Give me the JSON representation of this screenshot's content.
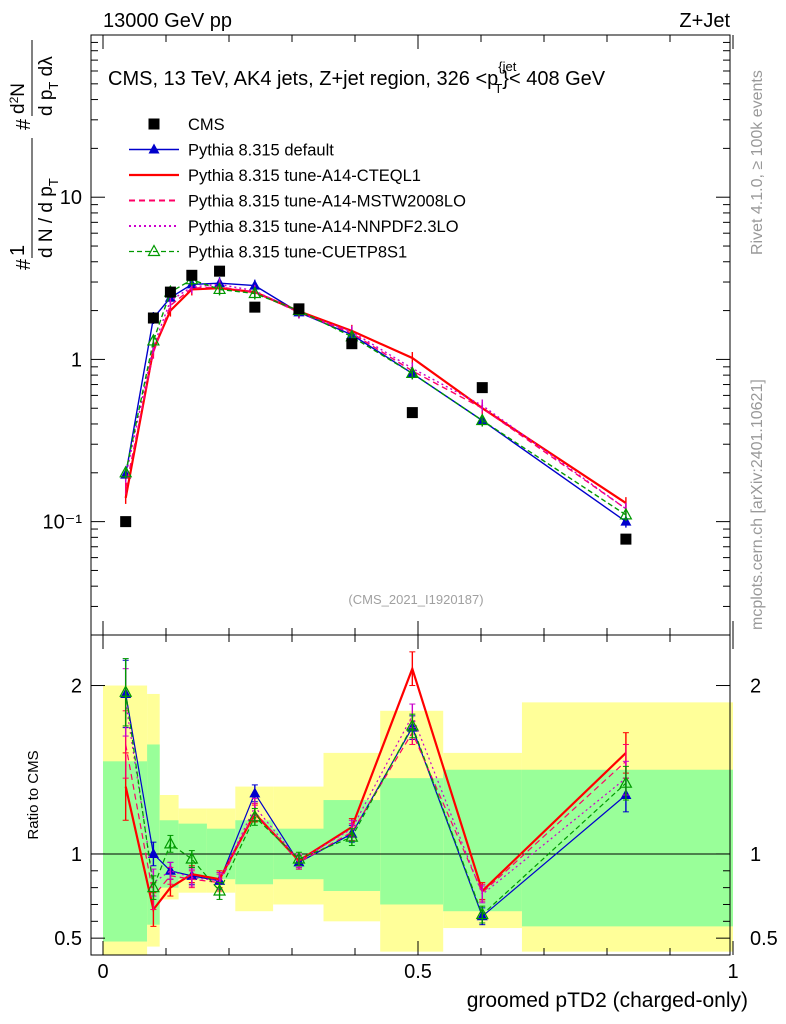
{
  "header": {
    "left": "13000 GeV pp",
    "right": "Z+Jet"
  },
  "plot_title": {
    "main": "CMS, 13 TeV, AK4 jets, Z+jet region, 326 <p",
    "sup": "{jet",
    "sub": "T",
    "end": "}< 408 GeV"
  },
  "ylabel_top": {
    "n1": "#",
    "n2": "1",
    "d1": "d N / d p",
    "d1sub": "T",
    "n3": "#",
    "n4": "d",
    "n4sup": "2",
    "n4b": "N",
    "d2": "d p",
    "d2sub": "T",
    "d2b": " dλ"
  },
  "side_texts": {
    "rivet": "Rivet 4.1.0, ≥ 100k events",
    "mcplots": "mcplots.cern.ch [arXiv:2401.10621]"
  },
  "analysis_tag": "(CMS_2021_I1920187)",
  "ratio_ylabel": "Ratio to CMS",
  "xlabel": "groomed pTD2 (charged-only)",
  "legend": [
    {
      "label": "CMS"
    },
    {
      "label": "Pythia 8.315 default"
    },
    {
      "label": "Pythia 8.315 tune-A14-CTEQL1"
    },
    {
      "label": "Pythia 8.315 tune-A14-MSTW2008LO"
    },
    {
      "label": "Pythia 8.315 tune-A14-NNPDF2.3LO"
    },
    {
      "label": "Pythia 8.315 tune-CUETP8S1"
    }
  ],
  "chart_data": {
    "type": "line",
    "title": "CMS, 13 TeV, AK4 jets, Z+jet region, 326 < pT jet < 408 GeV",
    "xlabel": "groomed pTD2 (charged-only)",
    "ylabel": "1/(dN/dpT) d2N/(dpT dlambda)",
    "xlim": [
      0,
      1
    ],
    "ylim": [
      0.02,
      100
    ],
    "yscale": "log",
    "ratio_ylim": [
      0.4,
      2.3
    ],
    "x_ticks": [
      {
        "v": 0,
        "label": "0"
      },
      {
        "v": 0.5,
        "label": "0.5"
      },
      {
        "v": 1,
        "label": "1"
      }
    ],
    "y_ticks": [
      {
        "v": 0.1,
        "label": "10⁻¹"
      },
      {
        "v": 1,
        "label": "1"
      },
      {
        "v": 10,
        "label": "10"
      }
    ],
    "ratio_ticks": [
      {
        "v": 0.5,
        "label": "0.5"
      },
      {
        "v": 1,
        "label": "1"
      },
      {
        "v": 2,
        "label": "2"
      }
    ],
    "x": [
      0.036,
      0.08,
      0.107,
      0.141,
      0.185,
      0.241,
      0.311,
      0.395,
      0.491,
      0.602,
      0.83
    ],
    "data_cms": [
      0.1,
      1.8,
      2.6,
      3.3,
      3.5,
      2.1,
      2.05,
      1.25,
      0.47,
      0.67,
      0.078
    ],
    "band_edges": [
      0,
      0.07,
      0.09,
      0.12,
      0.165,
      0.21,
      0.27,
      0.35,
      0.44,
      0.54,
      0.665,
      1.0
    ],
    "band_green": [
      [
        0.48,
        1.55
      ],
      [
        0.58,
        1.65
      ],
      [
        0.8,
        1.2
      ],
      [
        0.85,
        1.18
      ],
      [
        0.85,
        1.15
      ],
      [
        0.82,
        1.2
      ],
      [
        0.85,
        1.15
      ],
      [
        0.78,
        1.32
      ],
      [
        0.7,
        1.45
      ],
      [
        0.66,
        1.5
      ],
      [
        0.57,
        1.5
      ]
    ],
    "band_yellow": [
      [
        0.4,
        2.0
      ],
      [
        0.45,
        1.95
      ],
      [
        0.73,
        1.35
      ],
      [
        0.77,
        1.27
      ],
      [
        0.77,
        1.27
      ],
      [
        0.66,
        1.4
      ],
      [
        0.7,
        1.4
      ],
      [
        0.6,
        1.6
      ],
      [
        0.42,
        1.85
      ],
      [
        0.56,
        1.6
      ],
      [
        0.42,
        1.9
      ]
    ],
    "series": [
      {
        "name": "Pythia 8.315 default",
        "color": "#0000cc",
        "dash": "",
        "marker": "triangle",
        "values": [
          0.195,
          1.8,
          2.4,
          2.9,
          2.95,
          2.85,
          1.95,
          1.42,
          0.82,
          0.42,
          0.1
        ],
        "ratio": [
          1.95,
          1.0,
          0.9,
          0.87,
          0.84,
          1.36,
          0.95,
          1.12,
          1.75,
          0.63,
          1.35
        ],
        "ratio_err": [
          0.2,
          0.07,
          0.05,
          0.05,
          0.05,
          0.05,
          0.04,
          0.05,
          0.07,
          0.05,
          0.1
        ]
      },
      {
        "name": "Pythia 8.315 tune-A14-CTEQL1",
        "color": "#ff0000",
        "dash": "",
        "marker": "none",
        "values": [
          0.14,
          1.15,
          2.0,
          2.7,
          2.75,
          2.6,
          1.98,
          1.5,
          1.02,
          0.5,
          0.13
        ],
        "ratio": [
          1.4,
          0.67,
          0.8,
          0.88,
          0.85,
          1.24,
          0.96,
          1.16,
          2.1,
          0.78,
          1.6
        ],
        "ratio_err": [
          0.2,
          0.1,
          0.05,
          0.05,
          0.05,
          0.05,
          0.04,
          0.05,
          0.1,
          0.05,
          0.12
        ]
      },
      {
        "name": "Pythia 8.315 tune-A14-MSTW2008LO",
        "color": "#ff0066",
        "dash": "6,4",
        "marker": "none",
        "values": [
          0.16,
          1.1,
          2.15,
          2.75,
          2.8,
          2.6,
          1.95,
          1.45,
          0.85,
          0.5,
          0.12
        ],
        "ratio": [
          1.65,
          0.75,
          0.87,
          0.85,
          0.83,
          1.25,
          0.95,
          1.13,
          1.72,
          0.77,
          1.55
        ],
        "ratio_err": [
          0.2,
          0.08,
          0.05,
          0.05,
          0.05,
          0.05,
          0.04,
          0.05,
          0.07,
          0.05,
          0.1
        ]
      },
      {
        "name": "Pythia 8.315 tune-A14-NNPDF2.3LO",
        "color": "#cc00cc",
        "dash": "2,3",
        "marker": "none",
        "values": [
          0.19,
          1.2,
          2.3,
          2.8,
          2.9,
          2.65,
          1.95,
          1.48,
          0.88,
          0.52,
          0.12
        ],
        "ratio": [
          1.9,
          0.83,
          0.9,
          0.86,
          0.84,
          1.28,
          0.96,
          1.15,
          1.82,
          0.76,
          1.45
        ],
        "ratio_err": [
          0.2,
          0.08,
          0.05,
          0.05,
          0.05,
          0.05,
          0.04,
          0.05,
          0.07,
          0.05,
          0.1
        ]
      },
      {
        "name": "Pythia 8.315 tune-CUETP8S1",
        "color": "#009900",
        "dash": "5,3",
        "marker": "triangle-open",
        "values": [
          0.2,
          1.3,
          2.6,
          3.1,
          2.7,
          2.55,
          2.0,
          1.38,
          0.82,
          0.42,
          0.11
        ],
        "ratio": [
          1.96,
          0.8,
          1.06,
          0.97,
          0.78,
          1.22,
          0.97,
          1.1,
          1.76,
          0.64,
          1.42
        ],
        "ratio_err": [
          0.2,
          0.07,
          0.05,
          0.05,
          0.05,
          0.05,
          0.04,
          0.05,
          0.07,
          0.05,
          0.1
        ]
      }
    ]
  }
}
